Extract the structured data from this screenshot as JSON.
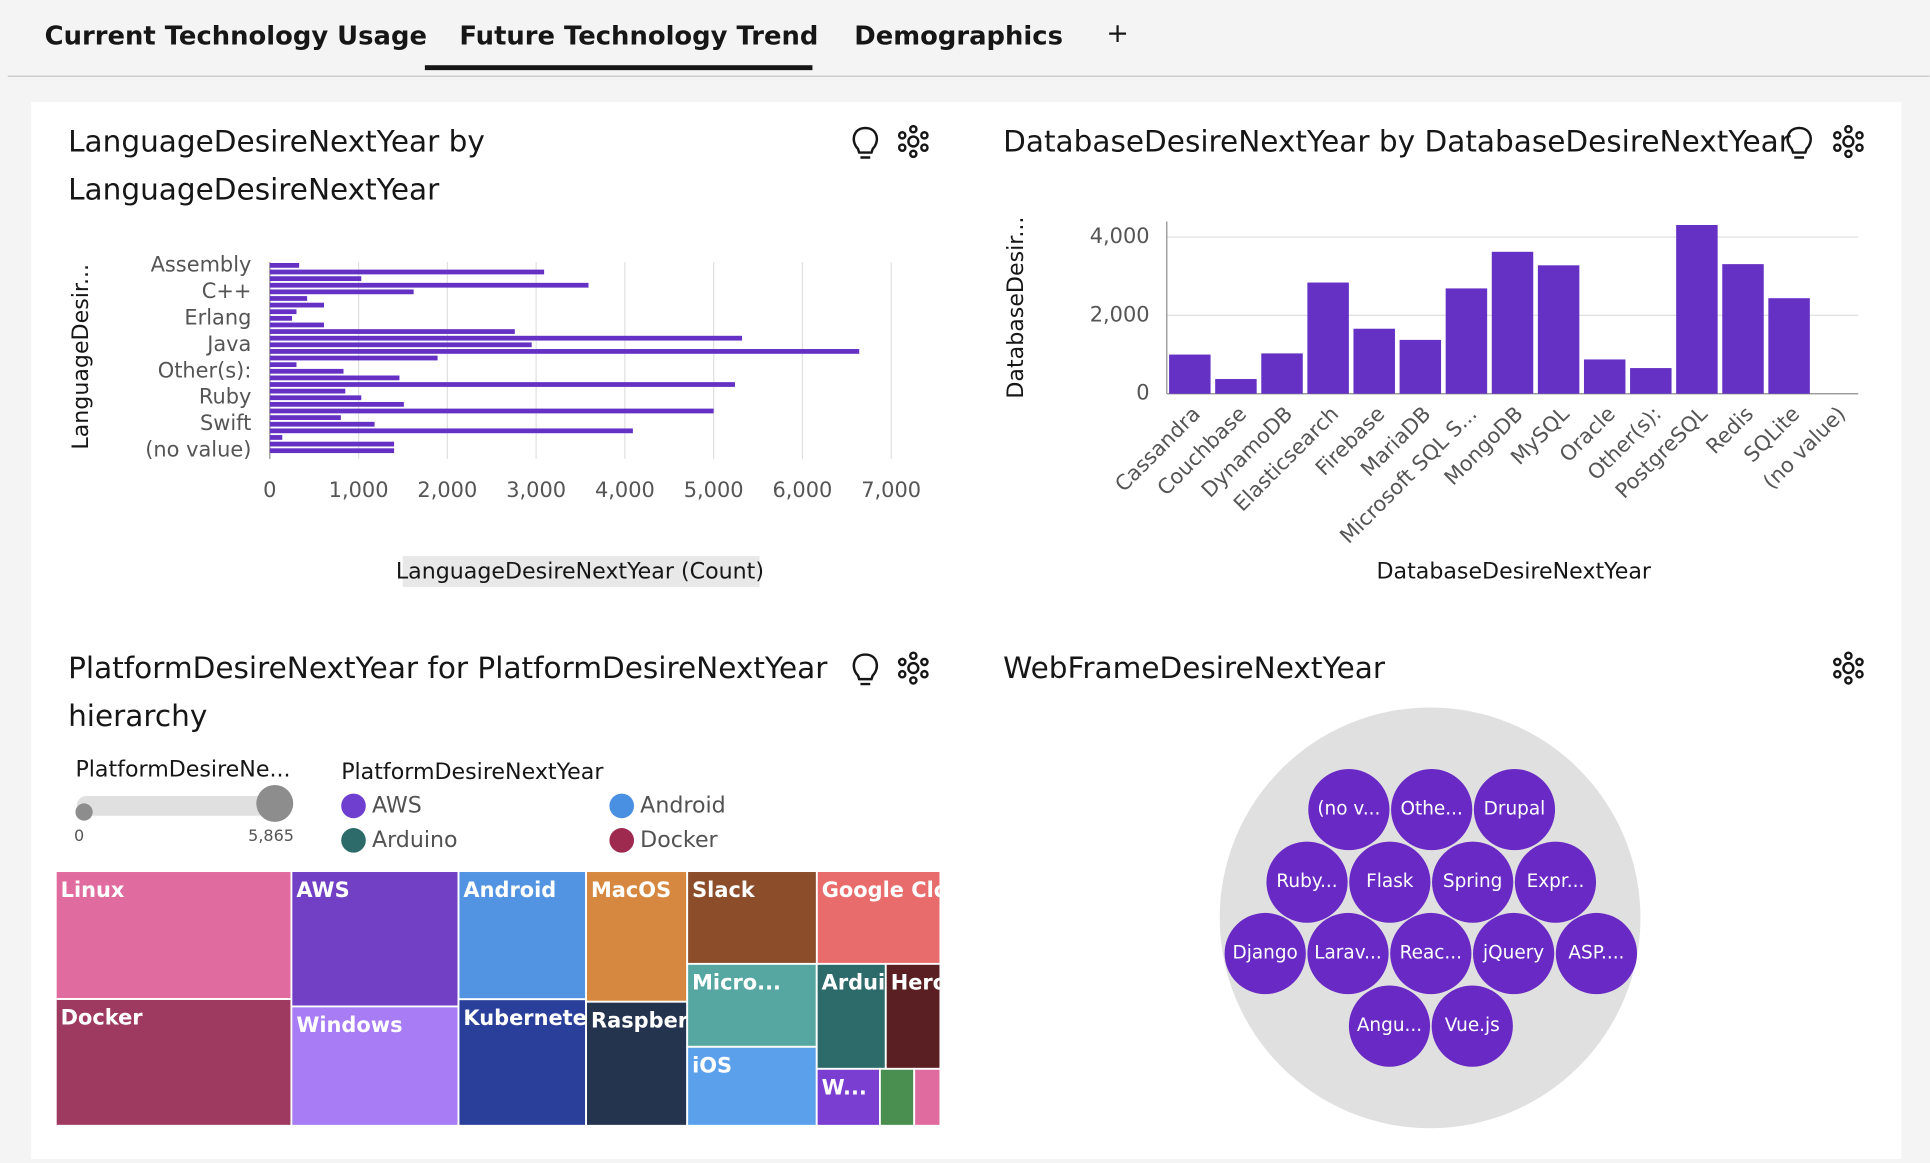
{
  "tabs": [
    "Current Technology Usage",
    "Future Technology Trend",
    "Demographics",
    "+"
  ],
  "chart_data": [
    {
      "type": "hbar",
      "title": "LanguageDesireNextYear by LanguageDesireNextYear",
      "x_label": "LanguageDesireNextYear (Count)",
      "y_label": "LanguageDesir...",
      "categories": [
        "Assembly",
        null,
        null,
        null,
        "C++",
        null,
        null,
        null,
        "Erlang",
        null,
        null,
        null,
        "Java",
        null,
        null,
        null,
        "Other(s):",
        null,
        null,
        null,
        "Ruby",
        null,
        null,
        null,
        "Swift",
        null,
        null,
        null,
        "(no value)"
      ],
      "values": [
        330,
        3090,
        1030,
        3590,
        1620,
        420,
        610,
        300,
        250,
        610,
        2760,
        5320,
        2950,
        6640,
        1890,
        300,
        830,
        1460,
        5240,
        850,
        1030,
        1510,
        5000,
        800,
        1180,
        4090,
        140,
        1400,
        1400
      ],
      "color": "#6530c4",
      "grid": true,
      "xlim": [
        0,
        7000
      ],
      "xticks": [
        0,
        {
          "value": 1000,
          "label": "1,000"
        },
        {
          "value": 2000,
          "label": "2,000"
        },
        {
          "value": 3000,
          "label": "3,000"
        },
        {
          "value": 4000,
          "label": "4,000"
        },
        {
          "value": 5000,
          "label": "5,000"
        },
        {
          "value": 6000,
          "label": "6,000"
        },
        {
          "value": 7000,
          "label": "7,000"
        }
      ]
    },
    {
      "type": "bar",
      "title": "DatabaseDesireNextYear by DatabaseDesireNextYear",
      "x_label": "DatabaseDesireNextYear",
      "y_label": "DatabaseDesir...",
      "categories": [
        "Cassandra",
        "Couchbase",
        "DynamoDB",
        "Elasticsearch",
        "Firebase",
        "MariaDB",
        "Microsoft SQL S...",
        "MongoDB",
        "MySQL",
        "Oracle",
        "Other(s):",
        "PostgreSQL",
        "Redis",
        "SQLite",
        "(no value)"
      ],
      "values": [
        1000,
        375,
        1030,
        2840,
        1660,
        1375,
        2690,
        3625,
        3280,
        875,
        655,
        4310,
        3310,
        2440,
        null
      ],
      "color": "#6530c4",
      "grid": true,
      "ylim": [
        0,
        4400
      ],
      "yticks": [
        0,
        {
          "value": 2000,
          "label": "2,000"
        },
        {
          "value": 4000,
          "label": "4,000"
        }
      ]
    },
    {
      "type": "treemap",
      "title": "PlatformDesireNextYear for PlatformDesireNextYear hierarchy",
      "slider": {
        "label": "PlatformDesireNe...",
        "range": [
          0,
          {
            "value": 5865,
            "label": "5,865"
          }
        ]
      },
      "legend_title": "PlatformDesireNextYear",
      "legend": [
        {
          "name": "AWS",
          "color": "#6f3fd0"
        },
        {
          "name": "Android",
          "color": "#4a90e2"
        },
        {
          "name": "Arduino",
          "color": "#2d6b6b"
        },
        {
          "name": "Docker",
          "color": "#9e2a4f"
        }
      ],
      "items": [
        {
          "name": "Linux",
          "value": 5865,
          "color": "#e06c9f"
        },
        {
          "name": "Docker",
          "value": 5810,
          "color": "#9e3a5f"
        },
        {
          "name": "AWS",
          "value": 4400,
          "color": "#7140c4"
        },
        {
          "name": "Windows",
          "value": 3880,
          "color": "#a77cf5"
        },
        {
          "name": "Android",
          "value": 3180,
          "color": "#5294e2"
        },
        {
          "name": "Kubernetes",
          "value": 3140,
          "color": "#2a3f9a"
        },
        {
          "name": "MacOS",
          "value": 2570,
          "color": "#d68840"
        },
        {
          "name": "Raspberry Pi",
          "value": 2440,
          "color": "#24344f"
        },
        {
          "name": "Slack",
          "value": 2340,
          "color": "#8b4d2a"
        },
        {
          "name": "Google Clou...",
          "value": 2230,
          "color": "#e86c6c"
        },
        {
          "name": "Micro...",
          "value": 2090,
          "color": "#56a7a2"
        },
        {
          "name": "iOS",
          "value": 1990,
          "color": "#5aa0ea"
        },
        {
          "name": "Arduino",
          "value": 1410,
          "color": "#2d6b6b"
        },
        {
          "name": "Heroku",
          "value": 1115,
          "color": "#5a1f22"
        },
        {
          "name": "W...",
          "value": 700,
          "color": "#7a3fd0"
        },
        {
          "name": null,
          "value": 380,
          "color": "#4a8f4f"
        },
        {
          "name": null,
          "value": 290,
          "color": "#e06c9f"
        }
      ]
    },
    {
      "type": "bubble",
      "title": "WebFrameDesireNextYear",
      "color": "#6929c4",
      "labels": [
        "(no v...",
        "Othe...",
        "Drupal",
        "Ruby...",
        "Flask",
        "Spring",
        "Expr...",
        "Django",
        "Larav...",
        "Reac...",
        "jQuery",
        "ASP....",
        "Angu...",
        "Vue.js"
      ]
    }
  ]
}
